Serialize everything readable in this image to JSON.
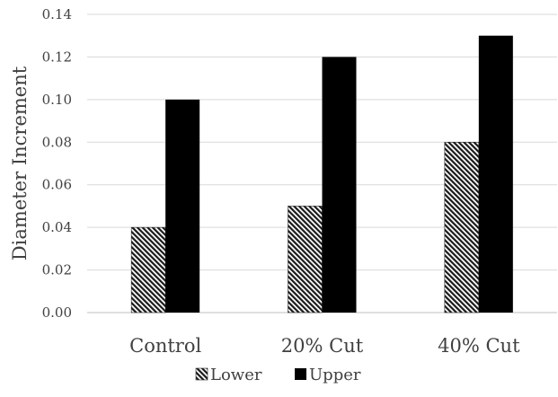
{
  "chart_data": {
    "type": "bar",
    "title": "",
    "xlabel": "",
    "ylabel": "Diameter Increment",
    "categories": [
      "Control",
      "20% Cut",
      "40% Cut"
    ],
    "series": [
      {
        "name": "Lower",
        "values": [
          0.04,
          0.05,
          0.08
        ],
        "fill": "hatched",
        "color": "#1a1a1a"
      },
      {
        "name": "Upper",
        "values": [
          0.1,
          0.12,
          0.13
        ],
        "fill": "solid",
        "color": "#000000"
      }
    ],
    "ylim": [
      0,
      0.14
    ],
    "yticks": [
      "0.00",
      "0.02",
      "0.04",
      "0.06",
      "0.08",
      "0.10",
      "0.12",
      "0.14"
    ],
    "grid": true,
    "legend_position": "bottom"
  }
}
